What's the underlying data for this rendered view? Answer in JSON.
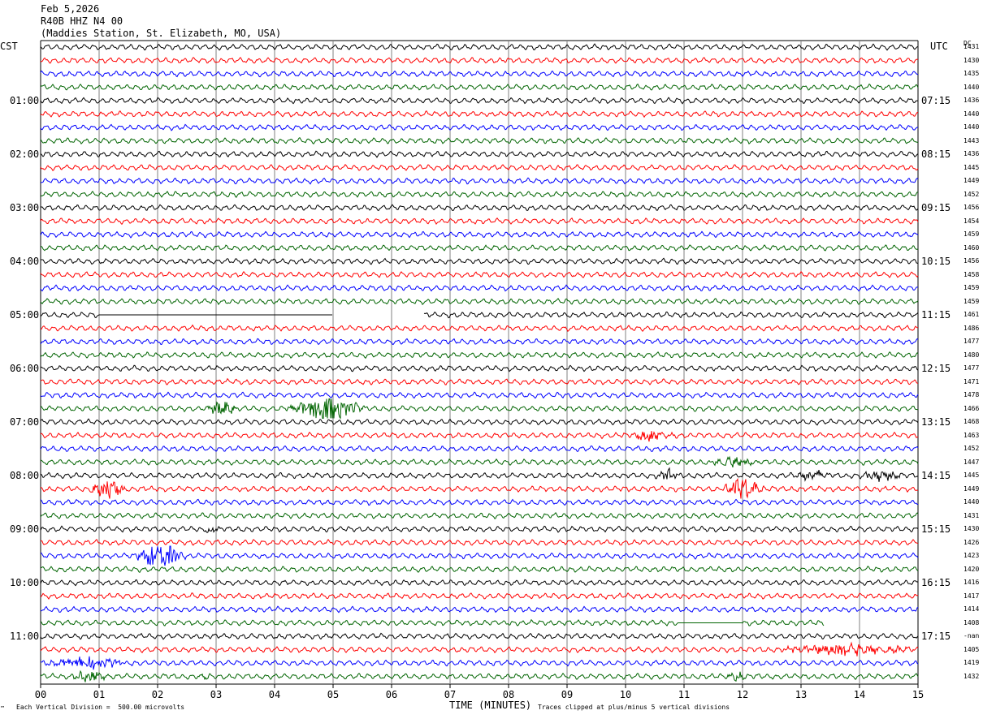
{
  "header": {
    "date": "Feb 5,2026",
    "station_code": "R40B HHZ N4 00",
    "station_name": "(Maddies Station, St. Elizabeth, MO, USA)"
  },
  "left_axis_label": "CST",
  "right_axis_label": "UTC",
  "dc_header": "DC",
  "footer": {
    "scale_note": "Each Vertical Division =  500.00 microvolts",
    "clip_note": "Traces clipped at plus/minus 5 vertical divisions",
    "corner_mark": "™"
  },
  "colors": {
    "trace_cycle": [
      "#000000",
      "#ff0000",
      "#0000ff",
      "#006400"
    ],
    "grid": "#808080"
  },
  "chart_data": {
    "type": "line",
    "title": "R40B HHZ N4 00",
    "xlabel": "TIME (MINUTES)",
    "ylabel": "",
    "xlim": [
      0,
      15
    ],
    "x_ticks": [
      "00",
      "01",
      "02",
      "03",
      "04",
      "05",
      "06",
      "07",
      "08",
      "09",
      "10",
      "11",
      "12",
      "13",
      "14",
      "15"
    ],
    "traces_per_hour": 4,
    "minutes_per_trace": 15,
    "cst_hour_labels": [
      "01:00",
      "02:00",
      "03:00",
      "04:00",
      "05:00",
      "06:00",
      "07:00",
      "08:00",
      "09:00",
      "10:00",
      "11:00"
    ],
    "utc_hour_labels": [
      "07:15",
      "08:15",
      "09:15",
      "10:15",
      "11:15",
      "12:15",
      "13:15",
      "14:15",
      "15:15",
      "16:15",
      "17:15"
    ],
    "dc_offsets": [
      "1431",
      "1430",
      "1435",
      "1440",
      "1436",
      "1440",
      "1440",
      "1443",
      "1436",
      "1445",
      "1449",
      "1452",
      "1456",
      "1454",
      "1459",
      "1460",
      "1456",
      "1458",
      "1459",
      "1459",
      "1461",
      "1486",
      "1477",
      "1480",
      "1477",
      "1471",
      "1478",
      "1466",
      "1468",
      "1463",
      "1452",
      "1447",
      "1445",
      "1449",
      "1440",
      "1431",
      "1430",
      "1426",
      "1423",
      "1420",
      "1416",
      "1417",
      "1414",
      "1408",
      "-nan",
      "1405",
      "1419",
      "1432"
    ],
    "events": [
      {
        "trace": 20,
        "type": "flat",
        "start_min": 1.0,
        "end_min": 5.0
      },
      {
        "trace": 20,
        "type": "gap",
        "start_min": 5.0,
        "end_min": 6.55
      },
      {
        "trace": 27,
        "start_min": 2.8,
        "end_min": 3.4,
        "amp": 2.2
      },
      {
        "trace": 27,
        "start_min": 4.2,
        "end_min": 5.6,
        "amp": 4.5
      },
      {
        "trace": 29,
        "start_min": 10.0,
        "end_min": 10.9,
        "amp": 1.8
      },
      {
        "trace": 31,
        "start_min": 11.4,
        "end_min": 12.3,
        "amp": 1.5
      },
      {
        "trace": 32,
        "start_min": 10.5,
        "end_min": 11.0,
        "amp": 1.8
      },
      {
        "trace": 32,
        "start_min": 12.8,
        "end_min": 13.6,
        "amp": 1.4
      },
      {
        "trace": 32,
        "start_min": 13.9,
        "end_min": 14.8,
        "amp": 1.4
      },
      {
        "trace": 33,
        "start_min": 0.8,
        "end_min": 1.5,
        "amp": 3.5
      },
      {
        "trace": 33,
        "start_min": 11.6,
        "end_min": 12.4,
        "amp": 4.0
      },
      {
        "trace": 36,
        "start_min": 2.7,
        "end_min": 3.1,
        "amp": 1.3
      },
      {
        "trace": 38,
        "start_min": 1.6,
        "end_min": 2.5,
        "amp": 4.5
      },
      {
        "trace": 43,
        "type": "flat",
        "start_min": 10.9,
        "end_min": 12.0
      },
      {
        "trace": 43,
        "type": "gap",
        "start_min": 13.4,
        "end_min": 15.0
      },
      {
        "trace": 45,
        "start_min": 12.5,
        "end_min": 15.0,
        "amp": 2.0
      },
      {
        "trace": 46,
        "start_min": 0.0,
        "end_min": 1.6,
        "amp": 1.8
      },
      {
        "trace": 47,
        "start_min": 0.5,
        "end_min": 1.2,
        "amp": 2.0
      },
      {
        "trace": 47,
        "start_min": 2.7,
        "end_min": 2.9,
        "amp": 1.5
      },
      {
        "trace": 47,
        "start_min": 11.7,
        "end_min": 12.1,
        "amp": 1.2
      }
    ]
  }
}
